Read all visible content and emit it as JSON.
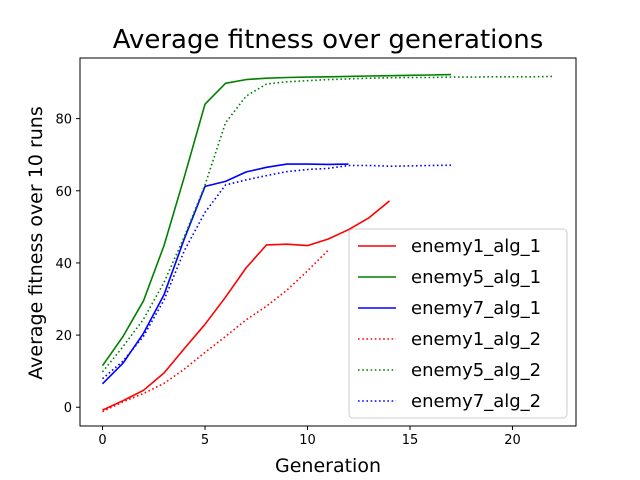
{
  "chart_data": {
    "type": "line",
    "title": "Average fitness over generations",
    "xlabel": "Generation",
    "ylabel": "Average fitness over 10 runs",
    "xlim": [
      -1.1,
      23.1
    ],
    "ylim": [
      -5.2,
      96.8
    ],
    "xticks": [
      0,
      5,
      10,
      15,
      20
    ],
    "yticks": [
      0,
      20,
      40,
      60,
      80
    ],
    "grid": false,
    "legend_position": "lower-right",
    "series": [
      {
        "name": "enemy1_alg_1",
        "color": "#ff0000",
        "style": "solid",
        "x": [
          0,
          1,
          2,
          3,
          4,
          5,
          6,
          7,
          8,
          9,
          10,
          11,
          12,
          13,
          14
        ],
        "y": [
          -0.8,
          1.8,
          4.7,
          9.5,
          16.3,
          23.0,
          30.5,
          38.6,
          45.0,
          45.2,
          44.8,
          46.6,
          49.2,
          52.5,
          57.2
        ]
      },
      {
        "name": "enemy5_alg_1",
        "color": "#008000",
        "style": "solid",
        "x": [
          0,
          1,
          2,
          3,
          4,
          5,
          6,
          7,
          8,
          9,
          10,
          11,
          12,
          13,
          14,
          15,
          16,
          17
        ],
        "y": [
          11.5,
          19.6,
          29.5,
          44.8,
          64.0,
          84.0,
          89.8,
          90.8,
          91.2,
          91.4,
          91.5,
          91.6,
          91.7,
          91.8,
          91.9,
          92.0,
          92.1,
          92.2
        ]
      },
      {
        "name": "enemy7_alg_1",
        "color": "#0000ff",
        "style": "solid",
        "x": [
          0,
          1,
          2,
          3,
          4,
          5,
          6,
          7,
          8,
          9,
          10,
          11,
          12
        ],
        "y": [
          6.5,
          12.2,
          20.5,
          31.2,
          46.8,
          61.2,
          62.6,
          65.2,
          66.5,
          67.4,
          67.4,
          67.3,
          67.4
        ]
      },
      {
        "name": "enemy1_alg_2",
        "color": "#ff0000",
        "style": "dotted",
        "x": [
          0,
          1,
          2,
          3,
          4,
          5,
          6,
          7,
          8,
          9,
          10,
          11
        ],
        "y": [
          -1.2,
          1.5,
          3.8,
          6.6,
          10.6,
          15.2,
          19.6,
          24.2,
          28.0,
          32.5,
          37.8,
          43.5
        ]
      },
      {
        "name": "enemy5_alg_2",
        "color": "#008000",
        "style": "dotted",
        "x": [
          0,
          1,
          2,
          3,
          4,
          5,
          6,
          7,
          8,
          9,
          10,
          11,
          12,
          13,
          14,
          15,
          16,
          17,
          18,
          19,
          20,
          21,
          22
        ],
        "y": [
          9.8,
          16.8,
          24.4,
          34.6,
          47.4,
          61.6,
          78.8,
          86.2,
          89.6,
          90.2,
          90.5,
          90.8,
          91.0,
          91.2,
          91.3,
          91.4,
          91.4,
          91.5,
          91.5,
          91.6,
          91.6,
          91.6,
          91.7
        ]
      },
      {
        "name": "enemy7_alg_2",
        "color": "#0000ff",
        "style": "dotted",
        "x": [
          0,
          1,
          2,
          3,
          4,
          5,
          6,
          7,
          8,
          9,
          10,
          11,
          12,
          13,
          14,
          15,
          16,
          17
        ],
        "y": [
          7.9,
          12.8,
          19.7,
          29.7,
          43.5,
          54.0,
          61.6,
          63.0,
          64.2,
          65.3,
          65.9,
          66.2,
          67.0,
          67.0,
          66.8,
          66.9,
          67.0,
          67.1
        ]
      }
    ]
  }
}
